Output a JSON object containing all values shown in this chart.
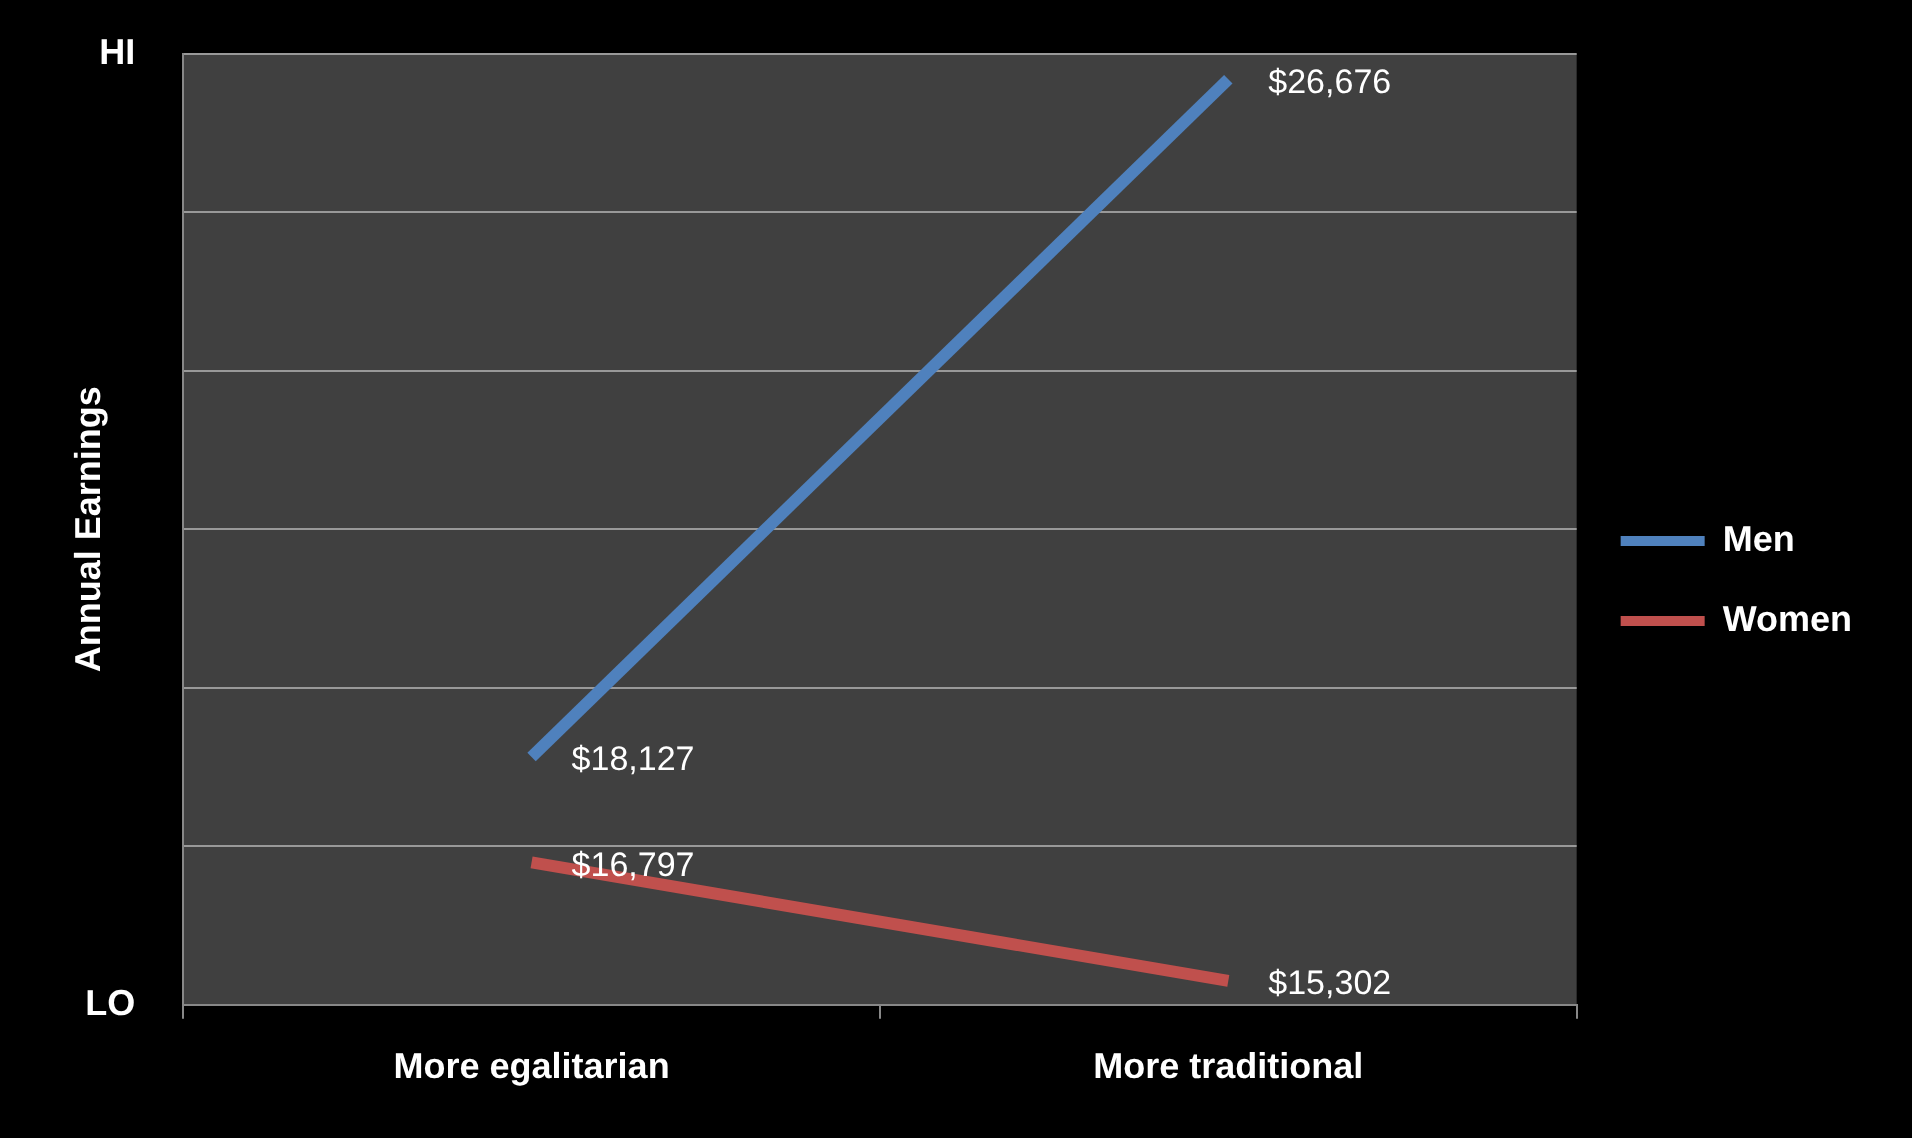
{
  "chart_data": {
    "type": "line",
    "ylabel": "Annual Earnings",
    "categories": [
      "More egalitarian",
      "More traditional"
    ],
    "series": [
      {
        "name": "Men",
        "color": "#4f81bd",
        "values": [
          18127,
          26676
        ],
        "value_labels": [
          "$18,127",
          "$26,676"
        ]
      },
      {
        "name": "Women",
        "color": "#c0504d",
        "values": [
          16797,
          15302
        ],
        "value_labels": [
          "$16,797",
          "$15,302"
        ]
      }
    ],
    "ylim": [
      15000,
      27000
    ],
    "yticks": [
      {
        "value": 15000,
        "label": null
      },
      {
        "value": 17000,
        "label": null
      },
      {
        "value": 19000,
        "label": null
      },
      {
        "value": 21000,
        "label": null
      },
      {
        "value": 23000,
        "label": null
      },
      {
        "value": 25000,
        "label": null
      },
      {
        "value": 27000,
        "label": null
      }
    ],
    "annotations": [
      "HI",
      "LO"
    ],
    "grid": "y",
    "legend": "right",
    "marker": "none",
    "line_style": "solid"
  }
}
